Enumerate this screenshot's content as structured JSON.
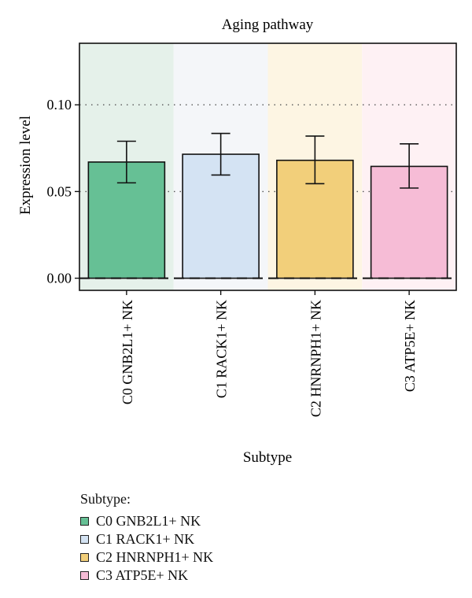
{
  "chart_data": {
    "type": "bar",
    "title": "Aging pathway",
    "xlabel": "Subtype",
    "ylabel": "Expression level",
    "categories": [
      "C0 GNB2L1+ NK",
      "C1 RACK1+ NK",
      "C2 HNRNPH1+ NK",
      "C3 ATP5E+ NK"
    ],
    "values": [
      0.067,
      0.0715,
      0.068,
      0.0645
    ],
    "error_low": [
      0.055,
      0.0595,
      0.0545,
      0.052
    ],
    "error_high": [
      0.079,
      0.0835,
      0.082,
      0.0775
    ],
    "yticks": [
      "0.00",
      "0.05",
      "0.10"
    ],
    "ytick_values": [
      0,
      0.05,
      0.1
    ],
    "ylim": [
      -0.007,
      0.1355
    ],
    "bar_colors": [
      "#66c095",
      "#d4e3f3",
      "#f2cf7a",
      "#f6bcd6"
    ],
    "panel_colors": [
      "#e5f1ea",
      "#f4f6f9",
      "#fdf5e3",
      "#fef1f4"
    ],
    "grid": "dotted horizontal at ticks",
    "legend": {
      "title": "Subtype:",
      "placement": "bottom-left",
      "items": [
        "C0 GNB2L1+ NK",
        "C1 RACK1+ NK",
        "C2 HNRNPH1+ NK",
        "C3 ATP5E+ NK"
      ]
    }
  }
}
